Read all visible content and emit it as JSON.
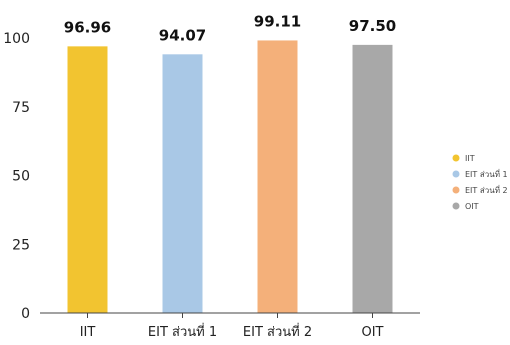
{
  "chart_data": {
    "type": "bar",
    "categories": [
      "IIT",
      "EIT ส่วนที่ 1",
      "EIT ส่วนที่ 2",
      "OIT"
    ],
    "values": [
      96.96,
      94.07,
      99.11,
      97.5
    ],
    "value_labels": [
      "96.96",
      "94.07",
      "99.11",
      "97.50"
    ],
    "colors": [
      "#f2c430",
      "#a9c8e6",
      "#f4b07a",
      "#a8a8a8"
    ],
    "ylim": [
      0,
      100
    ],
    "yticks": [
      0,
      25,
      50,
      75,
      100
    ],
    "legend": {
      "position": "right",
      "items": [
        "IIT",
        "EIT ส่วนที่ 1",
        "EIT ส่วนที่ 2",
        "OIT"
      ]
    },
    "grid": false
  }
}
